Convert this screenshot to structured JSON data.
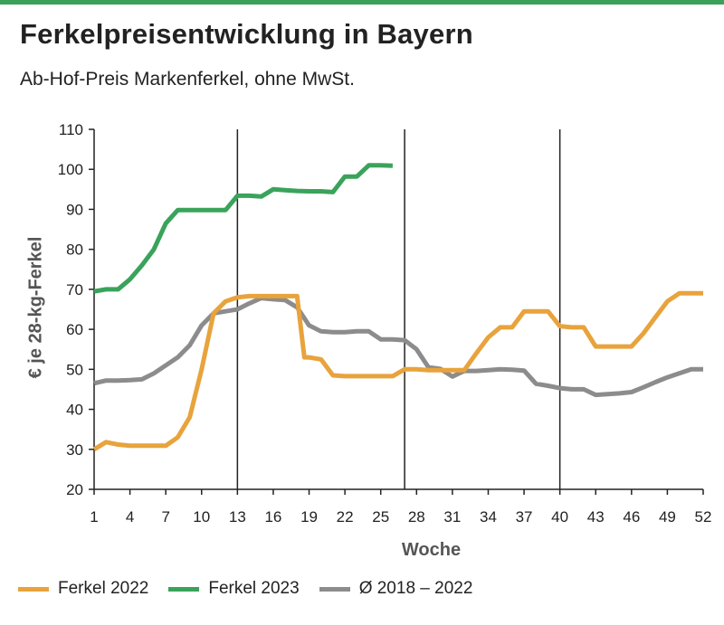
{
  "title": "Ferkelpreisentwicklung in Bayern",
  "subtitle": "Ab-Hof-Preis Markenferkel, ohne MwSt.",
  "chart_data": {
    "type": "line",
    "xlabel": "Woche",
    "ylabel": "€ je 28-kg-Ferkel",
    "xlim": [
      1,
      52
    ],
    "ylim": [
      20,
      110
    ],
    "x_ticks": [
      1,
      4,
      7,
      10,
      13,
      16,
      19,
      22,
      25,
      28,
      31,
      34,
      37,
      40,
      43,
      46,
      49,
      52
    ],
    "y_ticks": [
      20,
      30,
      40,
      50,
      60,
      70,
      80,
      90,
      100,
      110
    ],
    "vertical_gridlines_at": [
      13,
      27,
      40
    ],
    "grid": "vertical lines at weeks 13, 27, 40; no horizontal grid",
    "legend_position": "bottom",
    "series": [
      {
        "name": "Ferkel 2022",
        "color": "#e8a33c",
        "x": [
          1,
          2,
          3,
          4,
          5,
          6,
          7,
          8,
          9,
          10,
          11,
          12,
          13,
          14,
          15,
          16,
          17,
          18,
          18.6,
          19,
          20,
          21,
          22,
          23,
          24,
          25,
          26,
          27,
          28,
          29,
          30,
          31,
          32,
          33,
          34,
          35,
          36,
          37,
          38,
          39,
          40,
          41,
          42,
          43,
          44,
          45,
          46,
          47,
          48,
          49,
          50,
          51,
          52
        ],
        "y": [
          30,
          31.8,
          31.2,
          30.9,
          30.9,
          30.9,
          30.9,
          33,
          38,
          50,
          64,
          67,
          68,
          68.3,
          68.3,
          68.3,
          68.3,
          68.3,
          53,
          53,
          52.5,
          48.5,
          48.3,
          48.3,
          48.3,
          48.3,
          48.3,
          50,
          50,
          49.8,
          49.8,
          49.8,
          49.8,
          54,
          58,
          60.5,
          60.5,
          64.5,
          64.5,
          64.5,
          60.8,
          60.5,
          60.5,
          55.7,
          55.7,
          55.7,
          55.7,
          59,
          63,
          67,
          69,
          69,
          69
        ]
      },
      {
        "name": "Ferkel 2023",
        "color": "#3aa35b",
        "x": [
          1,
          2,
          3,
          4,
          5,
          6,
          7,
          8,
          9,
          10,
          11,
          12,
          13,
          14,
          15,
          16,
          17,
          18,
          19,
          20,
          21,
          22,
          23,
          24,
          25,
          26
        ],
        "y": [
          69.5,
          70,
          70,
          72.5,
          76,
          80,
          86.5,
          89.8,
          89.8,
          89.8,
          89.8,
          89.8,
          93.4,
          93.4,
          93.2,
          95,
          94.8,
          94.6,
          94.5,
          94.5,
          94.3,
          98.2,
          98.2,
          101,
          101,
          100.9
        ]
      },
      {
        "name": "Ø 2018 – 2022",
        "color": "#8c8c8c",
        "x": [
          1,
          2,
          3,
          4,
          5,
          6,
          7,
          8,
          9,
          10,
          11,
          12,
          13,
          14,
          15,
          16,
          17,
          18,
          19,
          20,
          21,
          22,
          23,
          24,
          25,
          26,
          27,
          28,
          29,
          30,
          31,
          32,
          33,
          34,
          35,
          36,
          37,
          38,
          39,
          40,
          41,
          42,
          43,
          44,
          45,
          46,
          47,
          48,
          49,
          50,
          51,
          52
        ],
        "y": [
          46.5,
          47.2,
          47.2,
          47.3,
          47.5,
          49,
          51,
          53,
          56,
          61,
          64,
          64.5,
          65,
          66.5,
          67.8,
          67.5,
          67.3,
          65.5,
          61,
          59.5,
          59.3,
          59.3,
          59.5,
          59.5,
          57.5,
          57.5,
          57.3,
          55,
          50.5,
          50.1,
          48.2,
          49.6,
          49.6,
          49.8,
          50,
          49.9,
          49.7,
          46.4,
          45.9,
          45.3,
          45,
          45,
          43.6,
          43.8,
          44,
          44.3,
          45.5,
          46.8,
          48,
          49,
          50,
          50
        ]
      }
    ]
  }
}
